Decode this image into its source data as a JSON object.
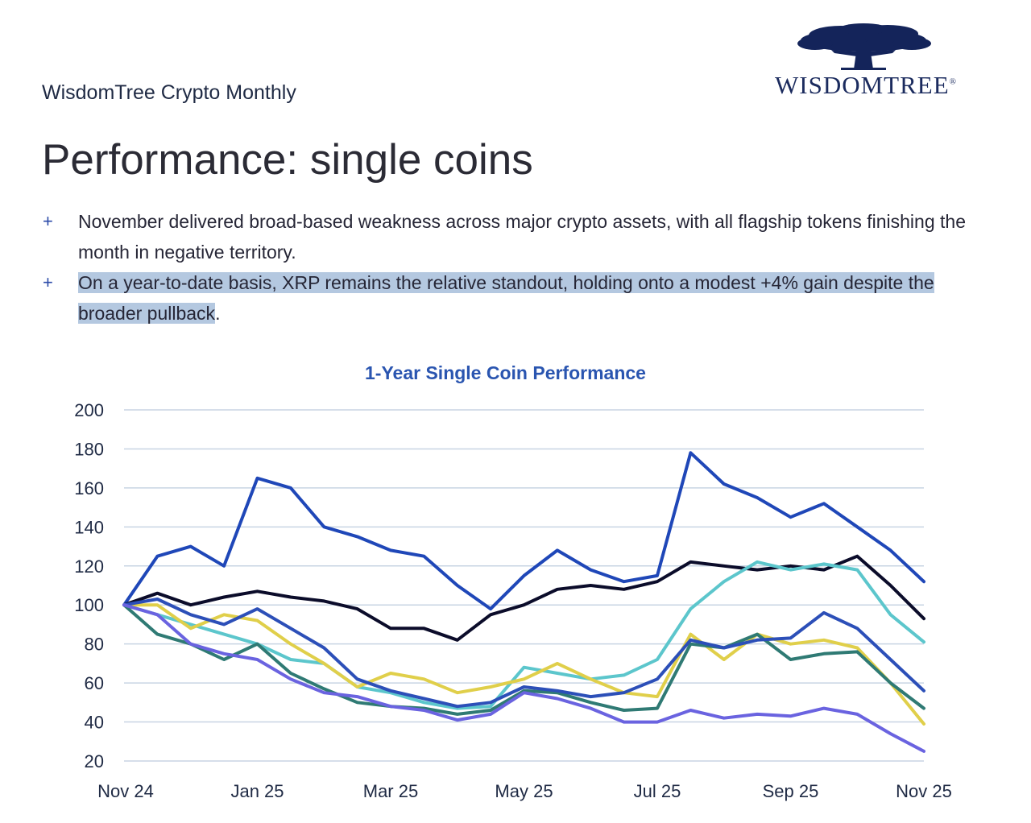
{
  "header": {
    "kicker": "WisdomTree Crypto Monthly",
    "logo_text": "WISDOMTREE",
    "logo_mark": "®"
  },
  "page_title": "Performance: single coins",
  "bullets": [
    {
      "plus": "+",
      "text": "November delivered broad-based weakness across major crypto assets, with all flagship tokens finishing the month in negative territory.",
      "highlight": ""
    },
    {
      "plus": "+",
      "text": "",
      "highlight": "On a year-to-date basis, XRP remains the relative standout, holding onto a modest +4% gain despite the broader pullback",
      "tail": "."
    }
  ],
  "colors": {
    "grid": "#c8d4e3",
    "series": [
      "#1f47b8",
      "#0b0c2a",
      "#5cc6cc",
      "#e0cf4a",
      "#2f7a74",
      "#2c4fb8",
      "#6a63e0"
    ]
  },
  "chart_data": {
    "type": "line",
    "title": "1-Year Single Coin Performance",
    "x_tick_labels": [
      "Nov 24",
      "Jan 25",
      "Mar 25",
      "May 25",
      "Jul 25",
      "Sep 25",
      "Nov 25"
    ],
    "ylim": [
      20,
      200
    ],
    "y_ticks": [
      20,
      40,
      60,
      80,
      100,
      120,
      140,
      160,
      180,
      200
    ],
    "grid": true,
    "legend": "none",
    "x_months": [
      0,
      0.5,
      1,
      1.5,
      2,
      2.5,
      3,
      3.5,
      4,
      4.5,
      5,
      5.5,
      6,
      6.5,
      7,
      7.5,
      8,
      8.5,
      9,
      9.5,
      10,
      10.5,
      11,
      11.5,
      12
    ],
    "series": [
      {
        "values": [
          100,
          125,
          130,
          120,
          165,
          160,
          140,
          135,
          128,
          125,
          110,
          98,
          115,
          128,
          118,
          112,
          115,
          178,
          162,
          155,
          145,
          152,
          140,
          128,
          112
        ]
      },
      {
        "values": [
          100,
          106,
          100,
          104,
          107,
          104,
          102,
          98,
          88,
          88,
          82,
          95,
          100,
          108,
          110,
          108,
          112,
          122,
          120,
          118,
          120,
          118,
          125,
          110,
          93
        ]
      },
      {
        "values": [
          100,
          95,
          90,
          85,
          80,
          72,
          70,
          58,
          55,
          50,
          47,
          48,
          68,
          65,
          62,
          64,
          72,
          98,
          112,
          122,
          118,
          121,
          118,
          95,
          81
        ]
      },
      {
        "values": [
          100,
          100,
          88,
          95,
          92,
          80,
          70,
          58,
          65,
          62,
          55,
          58,
          62,
          70,
          62,
          55,
          53,
          85,
          72,
          85,
          80,
          82,
          78,
          60,
          39
        ]
      },
      {
        "values": [
          100,
          85,
          80,
          72,
          80,
          65,
          57,
          50,
          48,
          47,
          44,
          46,
          56,
          55,
          50,
          46,
          47,
          80,
          78,
          85,
          72,
          75,
          76,
          60,
          47
        ]
      },
      {
        "values": [
          100,
          103,
          95,
          90,
          98,
          88,
          78,
          62,
          56,
          52,
          48,
          50,
          58,
          56,
          53,
          55,
          62,
          82,
          78,
          82,
          83,
          96,
          88,
          72,
          56
        ]
      },
      {
        "values": [
          100,
          95,
          80,
          75,
          72,
          62,
          55,
          53,
          48,
          46,
          41,
          44,
          55,
          52,
          47,
          40,
          40,
          46,
          42,
          44,
          43,
          47,
          44,
          34,
          25
        ]
      }
    ]
  }
}
